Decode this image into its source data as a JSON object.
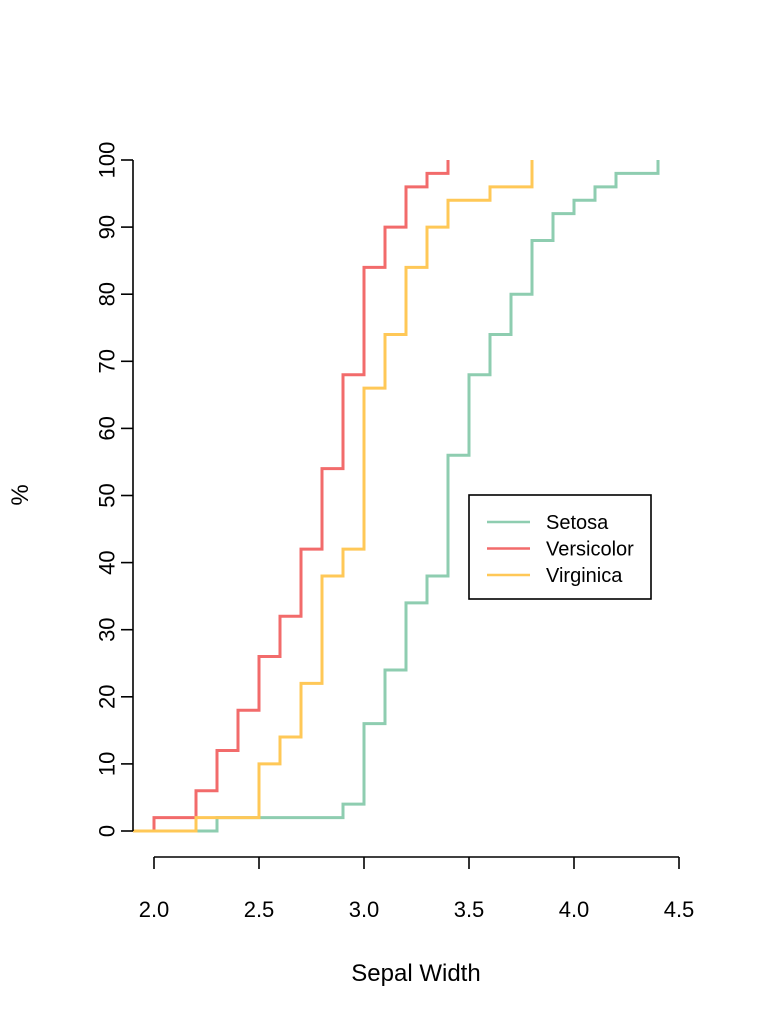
{
  "chart_data": {
    "type": "line",
    "step": true,
    "title": "",
    "xlabel": "Sepal Width",
    "ylabel": "%",
    "xlim": [
      2.0,
      4.5
    ],
    "ylim": [
      0,
      100
    ],
    "x_ticks": [
      "2.0",
      "2.5",
      "3.0",
      "3.5",
      "4.0",
      "4.5"
    ],
    "y_ticks": [
      "0",
      "10",
      "20",
      "30",
      "40",
      "50",
      "60",
      "70",
      "80",
      "90",
      "100"
    ],
    "grid": false,
    "legend_position": "center-right",
    "series": [
      {
        "name": "Setosa",
        "color": "#8ecdb0",
        "x": [
          2.3,
          2.9,
          3.0,
          3.1,
          3.2,
          3.3,
          3.4,
          3.5,
          3.6,
          3.7,
          3.8,
          3.9,
          4.0,
          4.1,
          4.2,
          4.4
        ],
        "y": [
          2,
          4,
          16,
          24,
          34,
          38,
          56,
          68,
          74,
          80,
          88,
          92,
          94,
          96,
          98,
          100
        ]
      },
      {
        "name": "Versicolor",
        "color": "#f26b6b",
        "x": [
          2.0,
          2.2,
          2.3,
          2.4,
          2.5,
          2.6,
          2.7,
          2.8,
          2.9,
          3.0,
          3.1,
          3.2,
          3.3,
          3.4
        ],
        "y": [
          2,
          6,
          12,
          18,
          26,
          32,
          42,
          54,
          68,
          84,
          90,
          96,
          98,
          100
        ]
      },
      {
        "name": "Virginica",
        "color": "#ffc857",
        "x": [
          2.2,
          2.5,
          2.6,
          2.7,
          2.8,
          2.9,
          3.0,
          3.1,
          3.2,
          3.3,
          3.4,
          3.6,
          3.8
        ],
        "y": [
          2,
          10,
          14,
          22,
          38,
          42,
          66,
          74,
          84,
          90,
          94,
          96,
          100
        ]
      }
    ]
  }
}
